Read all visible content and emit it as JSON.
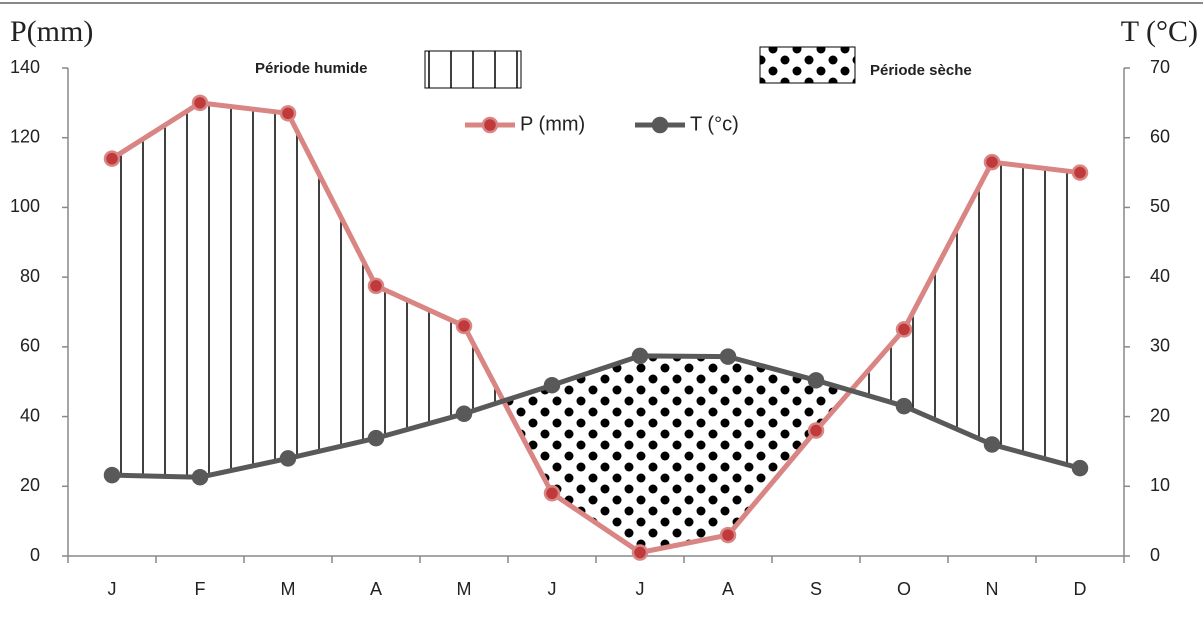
{
  "chart_data": {
    "type": "line",
    "y_label": "P(mm)",
    "y2_label": "T (°C)",
    "annotations": [
      "Période humide",
      "Période sèche"
    ],
    "categories": [
      "J",
      "F",
      "M",
      "A",
      "M",
      "J",
      "J",
      "A",
      "S",
      "O",
      "N",
      "D"
    ],
    "series": [
      {
        "name": "P (mm)",
        "color": "#d98583",
        "marker_color": "#c0393b",
        "values": [
          114,
          130,
          127,
          77.5,
          66,
          18,
          1,
          6,
          36,
          65,
          113,
          110
        ]
      },
      {
        "name": "T (°c)",
        "color": "#595959",
        "marker_color": "#595959",
        "axis": "y2",
        "values": [
          11.6,
          11.3,
          14,
          16.9,
          20.4,
          24.5,
          28.7,
          28.6,
          25.2,
          21.5,
          16,
          12.6
        ]
      }
    ],
    "ylim": [
      0,
      140
    ],
    "yticks": [
      0,
      20,
      40,
      60,
      80,
      100,
      120,
      140
    ],
    "y2lim": [
      0,
      70
    ],
    "y2ticks": [
      0,
      10,
      20,
      30,
      40,
      50,
      60,
      70
    ]
  }
}
